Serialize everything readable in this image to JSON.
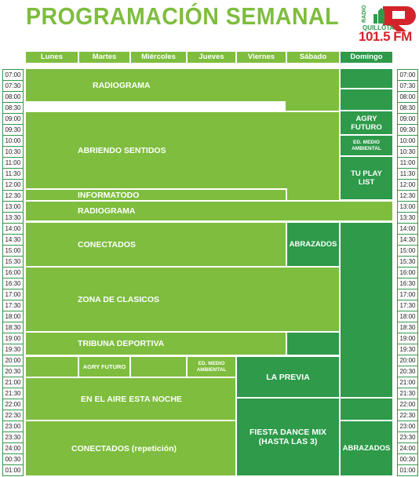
{
  "title": "PROGRAMACIÓN SEMANAL",
  "logo": {
    "radio": "RADIO",
    "quillota": "QUILLOTA",
    "frequency": "101.5 FM"
  },
  "days": [
    "Lunes",
    "Martes",
    "Miércoles",
    "Jueves",
    "Viernes",
    "Sábado",
    "Domingo"
  ],
  "times": [
    "07:00",
    "07:30",
    "08:00",
    "08:30",
    "09:00",
    "09:30",
    "10:00",
    "10:30",
    "11:00",
    "11:30",
    "12:00",
    "12:30",
    "13:00",
    "13:30",
    "14:00",
    "14:30",
    "15:00",
    "15:30",
    "16:00",
    "16:30",
    "17:00",
    "17:30",
    "18:00",
    "18:30",
    "19:00",
    "19:30",
    "20:00",
    "20:30",
    "21:00",
    "21:30",
    "22:00",
    "22:30",
    "23:00",
    "23:30",
    "24:00",
    "00:30",
    "01:00"
  ],
  "programs": {
    "radiograma_morning": "RADIOGRAMA",
    "abriendo_sentidos": "ABRIENDO SENTIDOS",
    "informatodo": "INFORMATODO",
    "radiograma_midday": "RADIOGRAMA",
    "conectados": "CONECTADOS",
    "abrazados_sat": "ABRAZADOS",
    "zona_clasicos": "ZONA DE CLASICOS",
    "tribuna_deportiva": "TRIBUNA DEPORTIVA",
    "agry_futuro_weekday": "AGRY FUTURO",
    "ed_medio_ambiental_weekday": "ED. MEDIO AMBIENTAL",
    "la_previa": "LA PREVIA",
    "en_el_aire": "EN EL AIRE ESTA NOCHE",
    "conectados_repeticion": "CONECTADOS (repetición)",
    "fiesta_dance_mix": "FIESTA DANCE MIX (HASTA LAS 3)",
    "agry_futuro_sun": "AGRY FUTURO",
    "ed_medio_ambiental_sun": "ED. MEDIO AMBIENTAL",
    "tu_play_list": "TU PLAY LIST",
    "abrazados_sun": "ABRAZADOS"
  },
  "colors": {
    "light_green": "#7ebd3e",
    "dark_green": "#2e9a4a",
    "logo_red": "#d4242b"
  }
}
